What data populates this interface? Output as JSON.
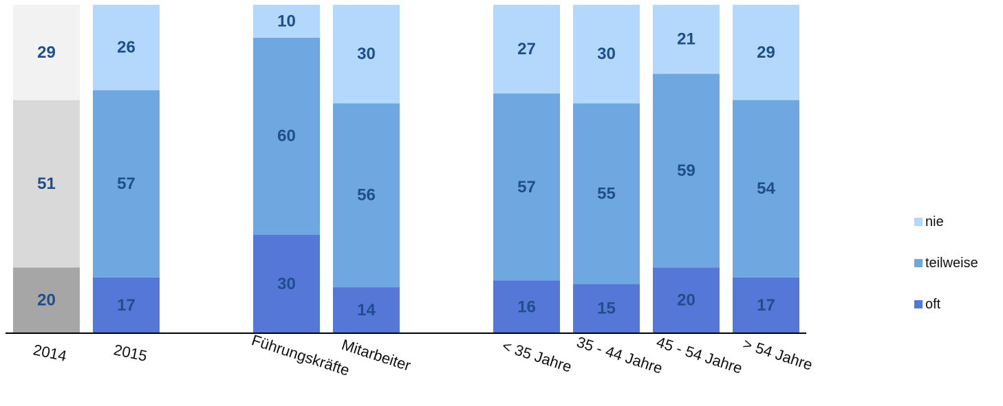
{
  "chart_data": {
    "type": "bar",
    "stacked": true,
    "percent_stacked": true,
    "title": "",
    "xlabel": "",
    "ylabel": "",
    "ylim": [
      0,
      100
    ],
    "grid": false,
    "legend_position": "right",
    "categories": [
      "2014",
      "2015",
      "Führungskräfte",
      "Mitarbeiter",
      "< 35 Jahre",
      "35 - 44 Jahre",
      "45 - 54 Jahre",
      "> 54 Jahre"
    ],
    "series": [
      {
        "name": "oft",
        "color": "#5577d8",
        "values": [
          20,
          17,
          30,
          14,
          16,
          15,
          20,
          17
        ]
      },
      {
        "name": "teilweise",
        "color": "#6fa8e0",
        "values": [
          51,
          57,
          60,
          56,
          57,
          55,
          59,
          54
        ]
      },
      {
        "name": "nie",
        "color": "#b4d8fc",
        "values": [
          29,
          26,
          10,
          30,
          27,
          30,
          21,
          29
        ]
      }
    ],
    "category_colors": {
      "2014": [
        "#a6a6a6",
        "#d9d9d9",
        "#f2f2f2"
      ]
    },
    "label_color": "#1f4e8c",
    "legend": [
      {
        "label": "nie",
        "color": "#b4d8fc"
      },
      {
        "label": "teilweise",
        "color": "#6fa8e0"
      },
      {
        "label": "oft",
        "color": "#5577d8"
      }
    ]
  }
}
